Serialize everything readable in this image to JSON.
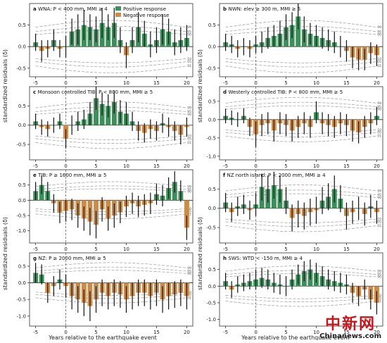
{
  "figure": {
    "ylabel": "standardized residuals (δ)",
    "xlabel": "Years relative to the earthquake event",
    "legend": {
      "positive_label": "Positive response",
      "negative_label": "Negative response",
      "positive_color": "#3c8f5a",
      "negative_color": "#c98c4a",
      "placement": "top-right of panel a"
    },
    "quantile_labels": [
      "99",
      "95",
      "90",
      "10",
      "05",
      "01"
    ],
    "watermark": {
      "cn": "中新网",
      "en": "Chinanews.com"
    }
  },
  "chart_data": [
    {
      "type": "bar",
      "panel": "a",
      "title": "WNA: P < 400 mm, MMI ≥ 4",
      "x": [
        -5,
        -4,
        -3,
        -2,
        -1,
        0,
        1,
        2,
        3,
        4,
        5,
        6,
        7,
        8,
        9,
        10,
        11,
        12,
        13,
        14,
        15,
        16,
        17,
        18,
        19,
        20
      ],
      "values": [
        0.1,
        -0.1,
        -0.05,
        0.15,
        -0.05,
        0.0,
        0.35,
        0.4,
        0.5,
        0.45,
        0.4,
        0.55,
        0.45,
        0.55,
        0.15,
        -0.2,
        0.15,
        0.45,
        0.3,
        0.05,
        0.15,
        0.4,
        0.35,
        0.1,
        0.15,
        0.2
      ],
      "errors": [
        0.2,
        0.25,
        0.2,
        0.25,
        0.2,
        0.25,
        0.3,
        0.35,
        0.35,
        0.3,
        0.3,
        0.35,
        0.3,
        0.35,
        0.3,
        0.3,
        0.3,
        0.35,
        0.3,
        0.3,
        0.3,
        0.35,
        0.3,
        0.3,
        0.3,
        0.3
      ],
      "xlim": [
        -6,
        21
      ],
      "ylim": [
        -0.7,
        1.0
      ],
      "yticks": [
        -0.5,
        0.0,
        0.5
      ],
      "xticks": [
        -5,
        0,
        5,
        10,
        15,
        20
      ]
    },
    {
      "type": "bar",
      "panel": "b",
      "title": "NWN: elev ≥ 300 m, MMI ≥ 5",
      "x": [
        -5,
        -4,
        -3,
        -2,
        -1,
        0,
        1,
        2,
        3,
        4,
        5,
        6,
        7,
        8,
        9,
        10,
        11,
        12,
        13,
        14,
        15,
        16,
        17,
        18,
        19,
        20
      ],
      "values": [
        0.1,
        0.05,
        -0.05,
        0.0,
        -0.05,
        0.05,
        0.1,
        0.2,
        0.25,
        0.3,
        0.45,
        0.5,
        0.7,
        0.4,
        0.3,
        0.25,
        0.2,
        0.15,
        0.1,
        0.0,
        -0.1,
        -0.25,
        -0.3,
        -0.3,
        -0.15,
        -0.2
      ],
      "errors": [
        0.2,
        0.2,
        0.2,
        0.2,
        0.2,
        0.2,
        0.25,
        0.25,
        0.25,
        0.3,
        0.3,
        0.3,
        0.3,
        0.3,
        0.25,
        0.25,
        0.25,
        0.25,
        0.25,
        0.25,
        0.25,
        0.25,
        0.25,
        0.25,
        0.25,
        0.25
      ],
      "xlim": [
        -6,
        21
      ],
      "ylim": [
        -0.7,
        1.0
      ],
      "yticks": [
        -0.5,
        0.0,
        0.5
      ],
      "xticks": [
        -5,
        0,
        5,
        10,
        15,
        20
      ]
    },
    {
      "type": "bar",
      "panel": "c",
      "title": "Monsoon controlled TIB: P < 800 mm, MMI ≥ 5",
      "x": [
        -5,
        -4,
        -3,
        -2,
        -1,
        0,
        1,
        2,
        3,
        4,
        5,
        6,
        7,
        8,
        9,
        10,
        11,
        12,
        13,
        14,
        15,
        16,
        17,
        18,
        19,
        20
      ],
      "values": [
        0.1,
        -0.05,
        -0.1,
        0.0,
        0.1,
        -0.35,
        0.0,
        0.1,
        0.15,
        0.3,
        0.7,
        0.55,
        0.5,
        0.6,
        0.35,
        0.3,
        0.1,
        -0.15,
        -0.2,
        -0.1,
        -0.15,
        0.05,
        -0.05,
        -0.15,
        -0.25,
        -0.05
      ],
      "errors": [
        0.2,
        0.2,
        0.2,
        0.2,
        0.2,
        0.25,
        0.25,
        0.25,
        0.25,
        0.3,
        0.3,
        0.3,
        0.3,
        0.3,
        0.3,
        0.3,
        0.25,
        0.25,
        0.25,
        0.25,
        0.25,
        0.25,
        0.25,
        0.25,
        0.25,
        0.25
      ],
      "xlim": [
        -6,
        21
      ],
      "ylim": [
        -0.9,
        1.0
      ],
      "yticks": [
        -0.5,
        0.0,
        0.5
      ],
      "xticks": [
        -5,
        0,
        5,
        10,
        15,
        20
      ]
    },
    {
      "type": "bar",
      "panel": "d",
      "title": "Westerly controlled TIB: P < 800 mm, MMI ≥ 5",
      "x": [
        -5,
        -4,
        -3,
        -2,
        -1,
        0,
        1,
        2,
        3,
        4,
        5,
        6,
        7,
        8,
        9,
        10,
        11,
        12,
        13,
        14,
        15,
        16,
        17,
        18,
        19,
        20
      ],
      "values": [
        0.1,
        0.05,
        0.0,
        0.1,
        -0.2,
        -0.4,
        -0.15,
        -0.1,
        -0.3,
        -0.1,
        -0.15,
        -0.3,
        -0.2,
        -0.1,
        -0.2,
        0.2,
        -0.1,
        -0.15,
        -0.2,
        -0.1,
        -0.15,
        -0.3,
        -0.35,
        -0.2,
        -0.1,
        0.1
      ],
      "errors": [
        0.2,
        0.2,
        0.2,
        0.2,
        0.25,
        0.35,
        0.3,
        0.3,
        0.3,
        0.3,
        0.3,
        0.3,
        0.3,
        0.3,
        0.3,
        0.3,
        0.3,
        0.3,
        0.3,
        0.3,
        0.3,
        0.3,
        0.3,
        0.3,
        0.3,
        0.25
      ],
      "xlim": [
        -6,
        21
      ],
      "ylim": [
        -1.1,
        0.9
      ],
      "yticks": [
        -1.0,
        -0.5,
        0.0,
        0.5
      ],
      "xticks": [
        -5,
        0,
        5,
        10,
        15,
        20
      ]
    },
    {
      "type": "bar",
      "panel": "e",
      "title": "TIB: P ≥ 1600 mm, MMI ≥ 5",
      "x": [
        -5,
        -4,
        -3,
        -2,
        -1,
        0,
        1,
        2,
        3,
        4,
        5,
        6,
        7,
        8,
        9,
        10,
        11,
        12,
        13,
        14,
        15,
        16,
        17,
        18,
        19,
        20
      ],
      "values": [
        0.3,
        0.5,
        0.3,
        -0.1,
        -0.4,
        -0.35,
        -0.3,
        -0.5,
        -0.6,
        -0.7,
        -0.8,
        -0.3,
        -0.6,
        -0.5,
        -0.4,
        -0.2,
        -0.1,
        -0.2,
        -0.15,
        -0.1,
        0.2,
        0.15,
        0.4,
        0.6,
        0.3,
        -0.9
      ],
      "errors": [
        0.3,
        0.3,
        0.3,
        0.3,
        0.35,
        0.35,
        0.35,
        0.4,
        0.4,
        0.45,
        0.45,
        0.4,
        0.4,
        0.4,
        0.35,
        0.35,
        0.35,
        0.35,
        0.35,
        0.35,
        0.35,
        0.35,
        0.35,
        0.35,
        0.35,
        0.4
      ],
      "xlim": [
        -6,
        21
      ],
      "ylim": [
        -1.4,
        1.0
      ],
      "yticks": [
        -1.0,
        -0.5,
        0.0,
        0.5
      ],
      "xticks": [
        -5,
        0,
        5,
        10,
        15,
        20
      ]
    },
    {
      "type": "bar",
      "panel": "f",
      "title": "NZ north island: P < 2000 mm, MMI ≥ 4",
      "x": [
        -5,
        -4,
        -3,
        -2,
        -1,
        0,
        1,
        2,
        3,
        4,
        5,
        6,
        7,
        8,
        9,
        10,
        11,
        12,
        13,
        14,
        15,
        16,
        17,
        18,
        19,
        20
      ],
      "values": [
        0.15,
        -0.1,
        0.05,
        0.1,
        -0.05,
        0.1,
        0.55,
        0.5,
        0.6,
        0.5,
        0.2,
        -0.25,
        -0.15,
        -0.2,
        -0.1,
        -0.05,
        0.2,
        0.3,
        0.5,
        0.25,
        -0.2,
        -0.1,
        0.0,
        -0.15,
        0.05,
        -0.1
      ],
      "errors": [
        0.25,
        0.25,
        0.25,
        0.25,
        0.25,
        0.3,
        0.35,
        0.35,
        0.35,
        0.35,
        0.35,
        0.35,
        0.35,
        0.35,
        0.35,
        0.35,
        0.35,
        0.35,
        0.35,
        0.35,
        0.35,
        0.3,
        0.3,
        0.3,
        0.3,
        0.3
      ],
      "xlim": [
        -6,
        21
      ],
      "ylim": [
        -0.9,
        1.0
      ],
      "yticks": [
        -0.5,
        0.0,
        0.5
      ],
      "xticks": [
        -5,
        0,
        5,
        10,
        15,
        20
      ]
    },
    {
      "type": "bar",
      "panel": "g",
      "title": "NZ: P ≥ 2000 mm, MMI ≥ 5",
      "x": [
        -5,
        -4,
        -3,
        -2,
        -1,
        0,
        1,
        2,
        3,
        4,
        5,
        6,
        7,
        8,
        9,
        10,
        11,
        12,
        13,
        14,
        15,
        16,
        17,
        18,
        19,
        20
      ],
      "values": [
        0.3,
        0.25,
        -0.3,
        -0.1,
        0.1,
        -0.1,
        -0.4,
        -0.5,
        -0.6,
        -0.7,
        -0.5,
        -0.3,
        -0.4,
        -0.3,
        -0.35,
        -0.5,
        -0.4,
        -0.3,
        -0.3,
        -0.4,
        -0.3,
        -0.5,
        -0.4,
        -0.35,
        -0.3,
        -0.4
      ],
      "errors": [
        0.3,
        0.3,
        0.3,
        0.3,
        0.3,
        0.35,
        0.4,
        0.4,
        0.4,
        0.45,
        0.4,
        0.4,
        0.4,
        0.4,
        0.4,
        0.4,
        0.4,
        0.4,
        0.4,
        0.4,
        0.4,
        0.4,
        0.4,
        0.4,
        0.4,
        0.4
      ],
      "xlim": [
        -6,
        21
      ],
      "ylim": [
        -1.3,
        0.9
      ],
      "yticks": [
        -1.0,
        -0.5,
        0.0,
        0.5
      ],
      "xticks": [
        -5,
        0,
        5,
        10,
        15,
        20
      ]
    },
    {
      "type": "bar",
      "panel": "h",
      "title": "SWS: WTD < -150 m, MMI ≥ 4",
      "x": [
        -5,
        -4,
        -3,
        -2,
        -1,
        0,
        1,
        2,
        3,
        4,
        5,
        6,
        7,
        8,
        9,
        10,
        11,
        12,
        13,
        14,
        15,
        16,
        17,
        18,
        19,
        20
      ],
      "values": [
        0.15,
        -0.1,
        0.05,
        0.1,
        0.15,
        0.2,
        0.25,
        0.2,
        0.1,
        0.05,
        0.0,
        0.2,
        0.35,
        0.45,
        0.5,
        0.4,
        0.3,
        0.2,
        0.15,
        0.1,
        0.05,
        -0.2,
        -0.3,
        -0.1,
        -0.4,
        -0.5
      ],
      "errors": [
        0.25,
        0.25,
        0.25,
        0.25,
        0.25,
        0.3,
        0.3,
        0.3,
        0.3,
        0.3,
        0.3,
        0.3,
        0.3,
        0.3,
        0.3,
        0.3,
        0.3,
        0.3,
        0.3,
        0.3,
        0.3,
        0.3,
        0.3,
        0.3,
        0.3,
        0.35
      ],
      "xlim": [
        -6,
        21
      ],
      "ylim": [
        -1.2,
        1.0
      ],
      "yticks": [
        -1.0,
        -0.5,
        0.0,
        0.5
      ],
      "xticks": [
        -5,
        0,
        5,
        10,
        15,
        20
      ]
    }
  ]
}
